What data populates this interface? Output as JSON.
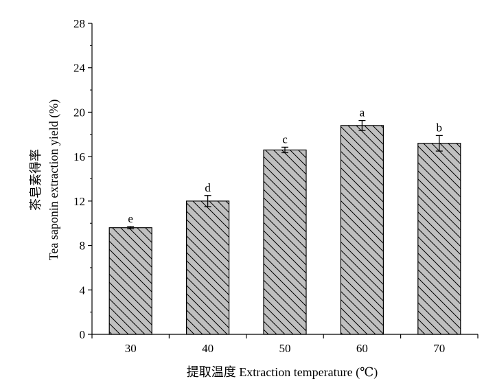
{
  "chart_data": {
    "type": "bar",
    "title": "",
    "xlabel": "提取温度 Extraction temperature (℃)",
    "ylabel_line1": "茶皂素得率",
    "ylabel_line2": "Tea saponin extraction yield (%)",
    "categories": [
      "30",
      "40",
      "50",
      "60",
      "70"
    ],
    "values": [
      9.6,
      12.0,
      16.6,
      18.8,
      17.2
    ],
    "errors": [
      0.1,
      0.5,
      0.25,
      0.45,
      0.7
    ],
    "significance": [
      "e",
      "d",
      "c",
      "a",
      "b"
    ],
    "ylim": [
      0,
      28
    ],
    "yticks": [
      "0",
      "4",
      "8",
      "12",
      "16",
      "20",
      "24",
      "28"
    ],
    "ytick_values": [
      0,
      4,
      8,
      12,
      16,
      20,
      24,
      28
    ],
    "grid": false,
    "legend": "none",
    "bar_fill": "#c0c0c0",
    "hatch_color": "#000000"
  }
}
